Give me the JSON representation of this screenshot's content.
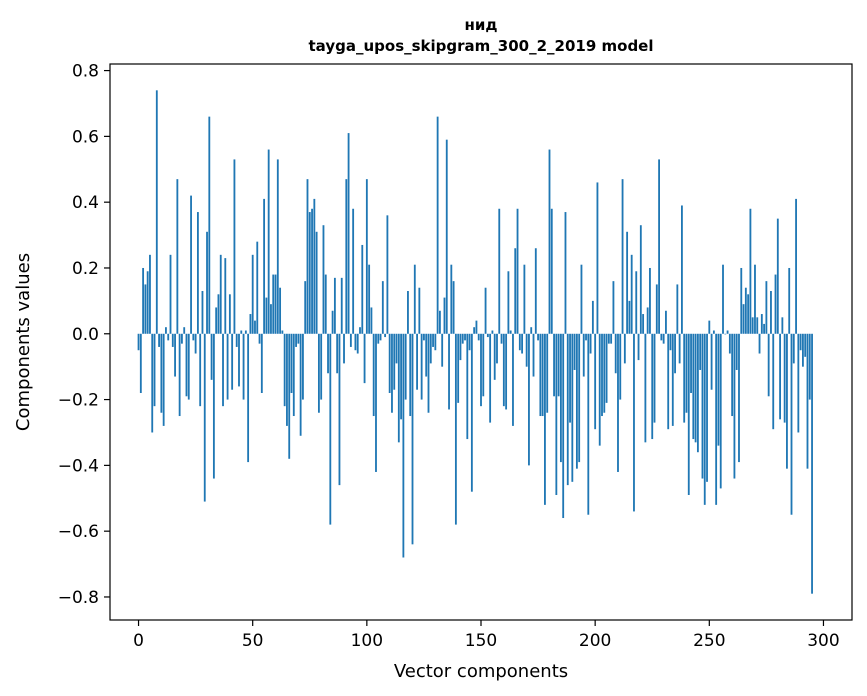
{
  "chart_data": {
    "type": "bar",
    "title": "нид",
    "subtitle": "tayga_upos_skipgram_300_2_2019 model",
    "xlabel": "Vector components",
    "ylabel": "Components values",
    "xlim": [
      -12.5,
      312.5
    ],
    "ylim": [
      -0.87,
      0.82
    ],
    "xticks": [
      0,
      50,
      100,
      150,
      200,
      250,
      300
    ],
    "yticks": [
      -0.8,
      -0.6,
      -0.4,
      -0.2,
      0.0,
      0.2,
      0.4,
      0.6,
      0.8
    ],
    "xtick_labels": [
      "0",
      "50",
      "100",
      "150",
      "200",
      "250",
      "300"
    ],
    "ytick_labels": [
      "−0.8",
      "−0.6",
      "−0.4",
      "−0.2",
      "0.0",
      "0.2",
      "0.4",
      "0.6",
      "0.8"
    ],
    "grid": false,
    "bar_color": "#1f77b4",
    "values": [
      -0.05,
      -0.18,
      0.2,
      0.15,
      0.19,
      0.24,
      -0.3,
      -0.22,
      0.74,
      -0.04,
      -0.24,
      -0.28,
      0.02,
      -0.02,
      0.24,
      -0.04,
      -0.13,
      0.47,
      -0.25,
      -0.03,
      0.02,
      -0.19,
      -0.2,
      0.42,
      -0.02,
      -0.06,
      0.37,
      -0.22,
      0.13,
      -0.51,
      0.31,
      0.66,
      -0.14,
      -0.44,
      0.08,
      0.12,
      0.24,
      -0.22,
      0.23,
      -0.2,
      0.12,
      -0.17,
      0.53,
      -0.04,
      -0.16,
      0.01,
      -0.2,
      0.01,
      -0.39,
      0.06,
      0.24,
      0.04,
      0.28,
      -0.03,
      -0.18,
      0.41,
      0.11,
      0.56,
      0.09,
      0.18,
      0.18,
      0.53,
      0.14,
      0.01,
      -0.22,
      -0.28,
      -0.38,
      -0.18,
      -0.25,
      -0.04,
      -0.03,
      -0.31,
      -0.2,
      0.16,
      0.47,
      0.37,
      0.38,
      0.41,
      0.31,
      -0.24,
      -0.2,
      0.33,
      0.18,
      -0.12,
      -0.58,
      0.07,
      0.17,
      -0.12,
      -0.46,
      0.17,
      -0.09,
      0.47,
      0.61,
      -0.04,
      0.38,
      -0.05,
      -0.06,
      0.02,
      0.27,
      -0.15,
      0.47,
      0.21,
      0.08,
      -0.25,
      -0.42,
      -0.03,
      -0.02,
      0.16,
      -0.01,
      0.36,
      -0.18,
      -0.24,
      -0.17,
      -0.09,
      -0.33,
      -0.26,
      -0.68,
      -0.2,
      0.13,
      -0.25,
      -0.64,
      0.21,
      -0.17,
      0.14,
      -0.2,
      -0.02,
      -0.13,
      -0.24,
      -0.09,
      -0.04,
      -0.05,
      0.66,
      0.07,
      -0.1,
      0.11,
      0.59,
      -0.23,
      0.21,
      0.16,
      -0.58,
      -0.21,
      -0.08,
      -0.03,
      -0.02,
      -0.32,
      -0.05,
      -0.48,
      0.02,
      0.04,
      -0.02,
      -0.22,
      -0.19,
      0.14,
      -0.01,
      -0.27,
      0.01,
      -0.14,
      -0.09,
      0.38,
      -0.03,
      -0.22,
      -0.23,
      0.19,
      0.01,
      -0.28,
      0.26,
      0.38,
      -0.05,
      -0.06,
      0.21,
      -0.1,
      -0.4,
      0.02,
      -0.13,
      0.26,
      -0.02,
      -0.25,
      -0.25,
      -0.52,
      -0.24,
      0.56,
      0.38,
      -0.19,
      -0.49,
      -0.19,
      -0.39,
      -0.56,
      0.37,
      -0.46,
      -0.27,
      -0.45,
      -0.11,
      -0.41,
      -0.39,
      0.21,
      -0.13,
      -0.02,
      -0.55,
      -0.06,
      0.1,
      -0.29,
      0.46,
      -0.34,
      -0.25,
      -0.24,
      -0.21,
      -0.03,
      -0.03,
      0.16,
      -0.12,
      -0.42,
      -0.2,
      0.47,
      -0.09,
      0.31,
      0.1,
      0.24,
      -0.54,
      0.19,
      -0.08,
      0.33,
      0.06,
      -0.33,
      0.08,
      0.2,
      -0.32,
      -0.27,
      0.15,
      0.53,
      -0.02,
      -0.03,
      0.07,
      -0.29,
      -0.05,
      -0.28,
      -0.12,
      0.15,
      -0.09,
      0.39,
      -0.27,
      -0.24,
      -0.49,
      -0.18,
      -0.32,
      -0.33,
      -0.36,
      -0.11,
      -0.44,
      -0.52,
      -0.45,
      0.04,
      -0.17,
      0.01,
      -0.52,
      -0.34,
      -0.47,
      0.21,
      0.0,
      0.01,
      -0.06,
      -0.25,
      -0.44,
      -0.11,
      -0.39,
      0.2,
      0.09,
      0.14,
      0.12,
      0.38,
      0.05,
      0.21,
      0.05,
      -0.06,
      0.06,
      0.03,
      0.16,
      -0.19,
      0.13,
      -0.29,
      0.18,
      0.35,
      -0.26,
      0.05,
      -0.27,
      -0.41,
      0.2,
      -0.55,
      -0.09,
      0.41,
      -0.3,
      -0.05,
      -0.1,
      -0.07,
      -0.41,
      -0.2,
      -0.79
    ]
  }
}
